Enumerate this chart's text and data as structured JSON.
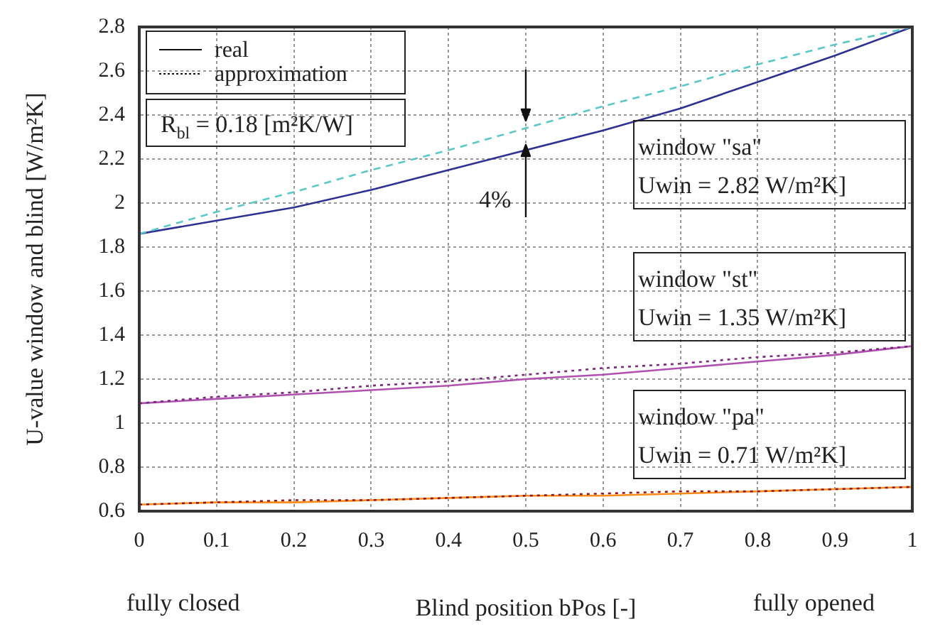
{
  "chart_data": {
    "type": "line",
    "xlabel": "Blind position bPos [-]",
    "ylabel": "U-value window and blind [W/m²K]",
    "x": [
      0,
      0.1,
      0.2,
      0.3,
      0.4,
      0.5,
      0.6,
      0.7,
      0.8,
      0.9,
      1
    ],
    "series": [
      {
        "color": "#2e3192",
        "line_style": "solid",
        "values": [
          1.86,
          1.92,
          1.98,
          2.06,
          2.15,
          2.24,
          2.33,
          2.43,
          2.55,
          2.67,
          2.8
        ]
      },
      {
        "color": "#5bc8c8",
        "line_style": "dashed",
        "values": [
          1.86,
          1.96,
          2.05,
          2.15,
          2.24,
          2.34,
          2.44,
          2.53,
          2.63,
          2.72,
          2.8
        ]
      },
      {
        "color": "#b050b0",
        "line_style": "solid",
        "values": [
          1.09,
          1.11,
          1.13,
          1.15,
          1.17,
          1.2,
          1.22,
          1.25,
          1.28,
          1.31,
          1.35
        ]
      },
      {
        "color": "#7a2a7a",
        "line_style": "dotted",
        "values": [
          1.09,
          1.12,
          1.14,
          1.17,
          1.19,
          1.22,
          1.25,
          1.27,
          1.3,
          1.32,
          1.35
        ]
      },
      {
        "color": "#ff8c1a",
        "line_style": "solid",
        "values": [
          0.63,
          0.64,
          0.64,
          0.65,
          0.66,
          0.67,
          0.67,
          0.68,
          0.69,
          0.7,
          0.71
        ]
      },
      {
        "color": "#8b1a1a",
        "line_style": "dotted",
        "values": [
          0.63,
          0.64,
          0.65,
          0.65,
          0.66,
          0.67,
          0.68,
          0.69,
          0.69,
          0.7,
          0.71
        ]
      }
    ],
    "xlim": [
      0,
      1
    ],
    "xticks": [
      0,
      0.1,
      0.2,
      0.3,
      0.4,
      0.5,
      0.6,
      0.7,
      0.8,
      0.9,
      1
    ],
    "ylim": [
      0.6,
      2.8
    ],
    "yticks": [
      0.6,
      0.8,
      1.0,
      1.2,
      1.4,
      1.6,
      1.8,
      2.0,
      2.2,
      2.4,
      2.6,
      2.8
    ],
    "grid": true,
    "marker": "none",
    "annotations": [
      "real",
      "approximation",
      "R$_{bl}$ = 0.18 [m²K/W]",
      "4%",
      "window \"sa\"\nUwin = 2.82 W/m²K]",
      "window \"st\"\nUwin = 1.35 W/m²K]",
      "window \"pa\"\nUwin = 0.71 W/m²K]",
      "fully closed",
      "fully opened"
    ]
  }
}
